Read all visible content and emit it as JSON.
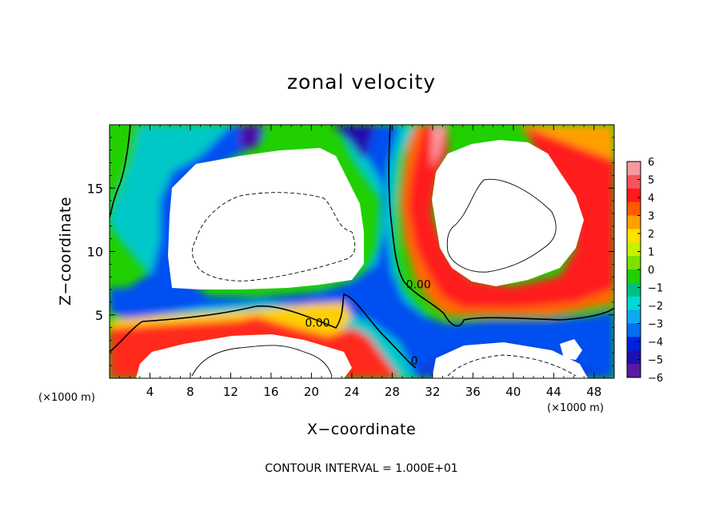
{
  "chart_data": {
    "type": "heatmap",
    "title": "zonal velocity",
    "xlabel": "X−coordinate",
    "ylabel": "Z−coordinate",
    "x_unit_left": "(×1000 m)",
    "x_unit_right": "(×1000 m)",
    "xlim": [
      0,
      50
    ],
    "ylim": [
      0,
      20
    ],
    "x_ticks": [
      4,
      8,
      12,
      16,
      20,
      24,
      28,
      32,
      36,
      40,
      44,
      48
    ],
    "y_ticks": [
      5,
      10,
      15
    ],
    "colorbar": {
      "range": [
        -6,
        6
      ],
      "ticks": [
        "6",
        "5",
        "4",
        "3",
        "2",
        "1",
        "0",
        "−1",
        "−2",
        "−3",
        "−4",
        "−5",
        "−6"
      ],
      "colors": [
        "#f59aa0",
        "#f7535a",
        "#ff1a1a",
        "#ff5a00",
        "#ffa000",
        "#ffe000",
        "#c8f000",
        "#7de000",
        "#20d000",
        "#00c080",
        "#00d8d8",
        "#10a8f0",
        "#0070f0",
        "#0020e0",
        "#2010b0",
        "#5a1aa0"
      ]
    },
    "contour_labels": [
      {
        "text": "0.00",
        "x": 30.6,
        "z": 7.4
      },
      {
        "text": "0.00",
        "x": 20.6,
        "z": 4.4
      },
      {
        "text": "0",
        "x": 30.2,
        "z": 1.4
      }
    ],
    "annotation": "CONTOUR INTERVAL = 1.000E+01"
  }
}
